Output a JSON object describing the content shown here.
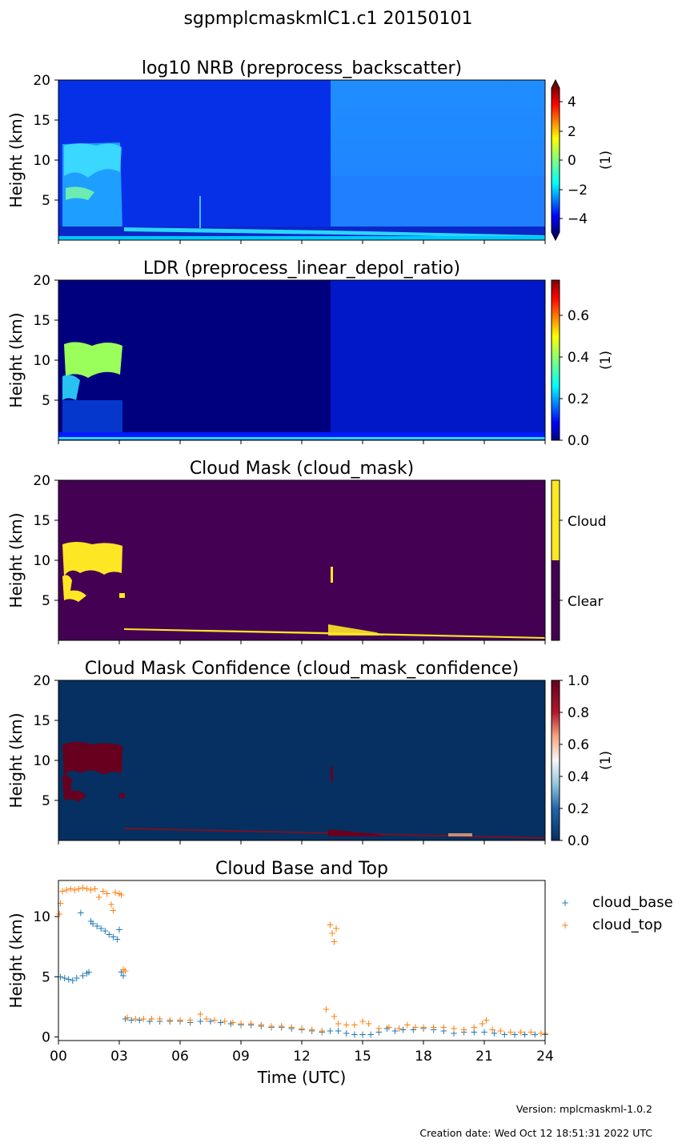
{
  "suptitle": "sgpmplcmaskmlC1.c1 20150101",
  "colors": {
    "cloud_base": "#1f77b4",
    "cloud_top": "#ff7f0e",
    "mask_clear": "#440154",
    "mask_cloud": "#fde725",
    "confidence_low": "#053061",
    "confidence_high": "#67001f"
  },
  "panels": [
    {
      "title": "log10 NRB (preprocess_backscatter)",
      "ylabel": "Height (km)",
      "yticks": [
        "5",
        "10",
        "15",
        "20"
      ],
      "colorbar_label": "(1)",
      "colorbar_ticks": [
        "4",
        "2",
        "0",
        "−2",
        "−4"
      ],
      "colormap": "jet"
    },
    {
      "title": "LDR (preprocess_linear_depol_ratio)",
      "ylabel": "Height (km)",
      "yticks": [
        "5",
        "10",
        "15",
        "20"
      ],
      "colorbar_label": "(1)",
      "colorbar_ticks": [
        "0.6",
        "0.4",
        "0.2",
        "0.0"
      ],
      "colormap": "jet"
    },
    {
      "title": "Cloud Mask (cloud_mask)",
      "ylabel": "Height (km)",
      "yticks": [
        "5",
        "10",
        "15",
        "20"
      ],
      "colorbar_ticks": [
        "Cloud",
        "Clear"
      ],
      "colormap": "viridis"
    },
    {
      "title": "Cloud Mask Confidence (cloud_mask_confidence)",
      "ylabel": "Height (km)",
      "yticks": [
        "5",
        "10",
        "15",
        "20"
      ],
      "colorbar_label": "(1)",
      "colorbar_ticks": [
        "1.0",
        "0.8",
        "0.6",
        "0.4",
        "0.2",
        "0.0"
      ],
      "colormap": "RdBu_r"
    }
  ],
  "line_panel": {
    "title": "Cloud Base and Top",
    "ylabel": "Height (km)",
    "xlabel": "Time (UTC)",
    "yticks": [
      "0",
      "5",
      "10"
    ],
    "xticks": [
      "00",
      "03",
      "06",
      "09",
      "12",
      "15",
      "18",
      "21",
      "24"
    ],
    "legend": [
      "cloud_base",
      "cloud_top"
    ]
  },
  "chart_data": {
    "type": "scatter",
    "title": "Cloud Base and Top",
    "xlabel": "Time (UTC)",
    "ylabel": "Height (km)",
    "xlim": [
      0,
      24
    ],
    "ylim": [
      -0.3,
      13
    ],
    "legend_position": "outside-right",
    "grid": false,
    "series": [
      {
        "name": "cloud_base",
        "points": [
          [
            0.1,
            5.0
          ],
          [
            0.3,
            4.9
          ],
          [
            0.5,
            4.8
          ],
          [
            0.7,
            4.7
          ],
          [
            0.9,
            4.9
          ],
          [
            1.1,
            10.3
          ],
          [
            1.2,
            5.1
          ],
          [
            1.4,
            5.3
          ],
          [
            1.5,
            5.4
          ],
          [
            1.6,
            9.6
          ],
          [
            1.7,
            9.4
          ],
          [
            1.9,
            9.2
          ],
          [
            2.1,
            9.0
          ],
          [
            2.3,
            8.8
          ],
          [
            2.5,
            8.5
          ],
          [
            2.7,
            8.3
          ],
          [
            2.9,
            8.1
          ],
          [
            3.0,
            8.9
          ],
          [
            3.1,
            5.4
          ],
          [
            3.2,
            5.1
          ],
          [
            3.3,
            1.5
          ],
          [
            3.6,
            1.4
          ],
          [
            4.0,
            1.4
          ],
          [
            4.5,
            1.3
          ],
          [
            5.0,
            1.3
          ],
          [
            5.5,
            1.3
          ],
          [
            6.0,
            1.3
          ],
          [
            6.5,
            1.2
          ],
          [
            7.0,
            1.3
          ],
          [
            7.5,
            1.3
          ],
          [
            8.0,
            1.2
          ],
          [
            8.5,
            1.1
          ],
          [
            9.0,
            1.0
          ],
          [
            9.5,
            1.0
          ],
          [
            10.0,
            0.9
          ],
          [
            10.5,
            0.8
          ],
          [
            11.0,
            0.8
          ],
          [
            11.5,
            0.7
          ],
          [
            12.0,
            0.6
          ],
          [
            12.5,
            0.5
          ],
          [
            13.0,
            0.4
          ],
          [
            13.4,
            0.5
          ],
          [
            13.8,
            0.5
          ],
          [
            14.2,
            0.3
          ],
          [
            14.6,
            0.2
          ],
          [
            15.0,
            0.2
          ],
          [
            15.4,
            0.2
          ],
          [
            15.8,
            0.4
          ],
          [
            16.2,
            0.7
          ],
          [
            16.6,
            0.5
          ],
          [
            17.0,
            0.6
          ],
          [
            17.5,
            0.6
          ],
          [
            18.0,
            0.7
          ],
          [
            18.5,
            0.6
          ],
          [
            19.0,
            0.5
          ],
          [
            19.5,
            0.3
          ],
          [
            20.0,
            0.4
          ],
          [
            20.5,
            0.4
          ],
          [
            21.0,
            0.4
          ],
          [
            21.5,
            0.3
          ],
          [
            22.0,
            0.2
          ],
          [
            22.5,
            0.2
          ],
          [
            23.0,
            0.2
          ],
          [
            23.5,
            0.2
          ],
          [
            24.0,
            0.2
          ]
        ]
      },
      {
        "name": "cloud_top",
        "points": [
          [
            0.05,
            10.2
          ],
          [
            0.1,
            11.1
          ],
          [
            0.2,
            12.1
          ],
          [
            0.4,
            12.2
          ],
          [
            0.6,
            12.3
          ],
          [
            0.8,
            12.2
          ],
          [
            1.0,
            12.3
          ],
          [
            1.2,
            12.4
          ],
          [
            1.4,
            12.3
          ],
          [
            1.6,
            12.2
          ],
          [
            1.8,
            12.3
          ],
          [
            2.0,
            11.6
          ],
          [
            2.2,
            12.1
          ],
          [
            2.4,
            11.9
          ],
          [
            2.6,
            11.0
          ],
          [
            2.7,
            10.5
          ],
          [
            2.8,
            12.0
          ],
          [
            3.0,
            11.9
          ],
          [
            3.1,
            11.8
          ],
          [
            3.2,
            5.6
          ],
          [
            3.3,
            5.5
          ],
          [
            3.4,
            1.6
          ],
          [
            3.8,
            1.5
          ],
          [
            4.2,
            1.5
          ],
          [
            4.6,
            1.5
          ],
          [
            5.0,
            1.5
          ],
          [
            5.5,
            1.4
          ],
          [
            6.0,
            1.4
          ],
          [
            6.5,
            1.4
          ],
          [
            7.0,
            1.9
          ],
          [
            7.3,
            1.5
          ],
          [
            7.7,
            1.4
          ],
          [
            8.2,
            1.3
          ],
          [
            8.6,
            1.2
          ],
          [
            9.0,
            1.1
          ],
          [
            9.5,
            1.1
          ],
          [
            10.0,
            1.0
          ],
          [
            10.5,
            0.9
          ],
          [
            11.0,
            0.9
          ],
          [
            11.5,
            0.8
          ],
          [
            12.0,
            0.7
          ],
          [
            12.5,
            0.6
          ],
          [
            13.0,
            0.5
          ],
          [
            13.2,
            2.3
          ],
          [
            13.4,
            9.3
          ],
          [
            13.5,
            8.6
          ],
          [
            13.6,
            7.9
          ],
          [
            13.7,
            9.0
          ],
          [
            13.6,
            1.7
          ],
          [
            13.8,
            1.1
          ],
          [
            14.2,
            1.0
          ],
          [
            14.6,
            1.0
          ],
          [
            15.0,
            1.3
          ],
          [
            15.3,
            1.1
          ],
          [
            15.8,
            0.7
          ],
          [
            16.3,
            0.8
          ],
          [
            16.8,
            0.7
          ],
          [
            17.2,
            1.0
          ],
          [
            17.6,
            0.8
          ],
          [
            18.0,
            0.8
          ],
          [
            18.5,
            0.8
          ],
          [
            19.0,
            0.8
          ],
          [
            19.5,
            0.7
          ],
          [
            20.0,
            0.6
          ],
          [
            20.5,
            0.8
          ],
          [
            20.9,
            1.1
          ],
          [
            21.1,
            1.4
          ],
          [
            21.4,
            0.6
          ],
          [
            21.8,
            0.5
          ],
          [
            22.3,
            0.4
          ],
          [
            22.8,
            0.4
          ],
          [
            23.3,
            0.4
          ],
          [
            23.8,
            0.3
          ],
          [
            24.0,
            0.3
          ]
        ]
      }
    ]
  },
  "footer": {
    "version": "Version: mplcmaskml-1.0.2",
    "created": "Creation date: Wed Oct 12 18:51:31 2022 UTC"
  }
}
